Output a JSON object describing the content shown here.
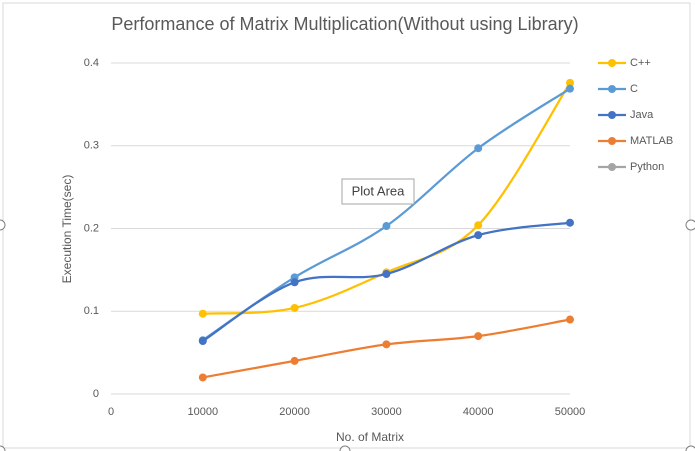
{
  "chart_data": {
    "type": "line",
    "title": "Performance of Matrix Multiplication(Without using Library)",
    "x_label": "No. of Matrix",
    "y_label": "Execution Time(sec)",
    "x": [
      10000,
      20000,
      30000,
      40000,
      50000
    ],
    "xlim": [
      0,
      50000
    ],
    "xticks": [
      0,
      10000,
      20000,
      30000,
      40000,
      50000
    ],
    "ylim": [
      0,
      0.4
    ],
    "yticks": [
      0,
      0.1,
      0.2,
      0.3,
      0.4
    ],
    "grid": true,
    "smooth": true,
    "legend": "right",
    "series": [
      {
        "name": "C++",
        "color": "#ffc000",
        "values": [
          0.097,
          0.104,
          0.147,
          0.204,
          0.376
        ]
      },
      {
        "name": "C",
        "color": "#5b9bd5",
        "values": [
          0.065,
          0.141,
          0.203,
          0.297,
          0.369
        ]
      },
      {
        "name": "Java",
        "color": "#4472c4",
        "values": [
          0.064,
          0.135,
          0.145,
          0.192,
          0.207
        ]
      },
      {
        "name": "MATLAB",
        "color": "#ed7d31",
        "values": [
          0.02,
          0.04,
          0.06,
          0.07,
          0.09
        ]
      },
      {
        "name": "Python",
        "color": "#a5a5a5",
        "values": [
          null,
          null,
          null,
          null,
          null
        ]
      }
    ]
  },
  "tooltip": "Plot Area"
}
